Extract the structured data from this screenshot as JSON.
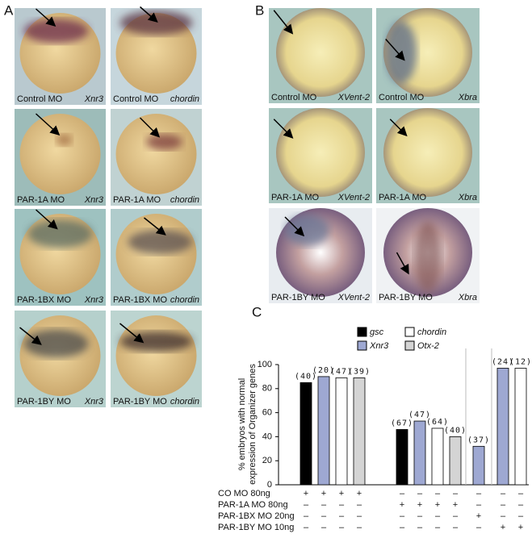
{
  "panel_a": {
    "label": "A",
    "photos": [
      {
        "condition": "Control MO",
        "gene": "Xnr3"
      },
      {
        "condition": "Control MO",
        "gene": "chordin"
      },
      {
        "condition": "PAR-1A MO",
        "gene": "Xnr3"
      },
      {
        "condition": "PAR-1A MO",
        "gene": "chordin"
      },
      {
        "condition": "PAR-1BX MO",
        "gene": "Xnr3"
      },
      {
        "condition": "PAR-1BX MO",
        "gene": "chordin"
      },
      {
        "condition": "PAR-1BY MO",
        "gene": "Xnr3"
      },
      {
        "condition": "PAR-1BY MO",
        "gene": "chordin"
      }
    ]
  },
  "panel_b": {
    "label": "B",
    "photos": [
      {
        "condition": "Control MO",
        "gene": "XVent-2"
      },
      {
        "condition": "Control MO",
        "gene": "Xbra"
      },
      {
        "condition": "PAR-1A MO",
        "gene": "XVent-2"
      },
      {
        "condition": "PAR-1A MO",
        "gene": "Xbra"
      },
      {
        "condition": "PAR-1BY MO",
        "gene": "XVent-2"
      },
      {
        "condition": "PAR-1BY MO",
        "gene": "Xbra"
      }
    ]
  },
  "chart_data": {
    "type": "bar",
    "panel_label": "C",
    "ylabel": [
      "% embryos with normal",
      "expression of Organizer genes"
    ],
    "ylim": [
      0,
      100
    ],
    "yticks": [
      0,
      20,
      40,
      60,
      80,
      100
    ],
    "series": [
      {
        "name": "gsc",
        "color": "#000000",
        "values": [
          85,
          46,
          null,
          null
        ],
        "n_labels": [
          "(40)",
          "(67)",
          null,
          null
        ]
      },
      {
        "name": "Xnr3",
        "color": "#9ea8d2",
        "values": [
          90,
          53,
          32,
          97
        ],
        "n_labels": [
          "(20)",
          "(47)",
          "(37)",
          "(24)"
        ]
      },
      {
        "name": "chordin",
        "color": "#ffffff",
        "values": [
          89,
          47,
          null,
          97
        ],
        "n_labels": [
          "(47)",
          "(64)",
          null,
          "(12)"
        ]
      },
      {
        "name": "Otx-2",
        "color": "#d4d4d4",
        "values": [
          89,
          40,
          null,
          null
        ],
        "n_labels": [
          "(39)",
          "(40)",
          null,
          null
        ]
      }
    ],
    "treatments": [
      {
        "label": "CO MO 80ng",
        "marks": [
          "+",
          "+",
          "+",
          "+",
          "–",
          "–",
          "–",
          "–",
          "–",
          "–",
          "–"
        ]
      },
      {
        "label": "PAR-1A MO 80ng",
        "marks": [
          "–",
          "–",
          "–",
          "–",
          "+",
          "+",
          "+",
          "+",
          "–",
          "–",
          "–"
        ]
      },
      {
        "label": "PAR-1BX MO 20ng",
        "marks": [
          "–",
          "–",
          "–",
          "–",
          "–",
          "–",
          "–",
          "–",
          "+",
          "–",
          "–"
        ]
      },
      {
        "label": "PAR-1BY MO 10ng",
        "marks": [
          "–",
          "–",
          "–",
          "–",
          "–",
          "–",
          "–",
          "–",
          "–",
          "+",
          "+"
        ]
      }
    ]
  }
}
